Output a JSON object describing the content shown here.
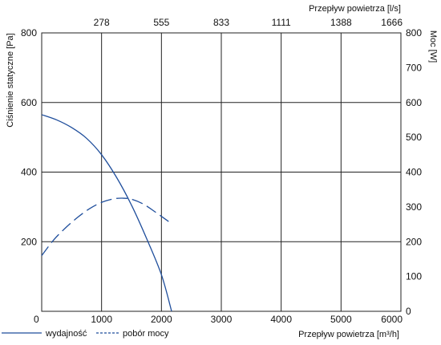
{
  "chart_data": {
    "type": "line",
    "x_label": "Przepływ powietrza [m³/h]",
    "x_top_label": "Przepływ powietrza [l/s]",
    "y_left_label": "Ciśnienie statyczne [Pa]",
    "y_right_label": "Moc [W]",
    "x_range": [
      0,
      6000
    ],
    "y_left_range": [
      0,
      800
    ],
    "y_right_range": [
      0,
      800
    ],
    "x_ticks": [
      "0",
      "1000",
      "2000",
      "3000",
      "4000",
      "5000",
      "6000"
    ],
    "x_top_ticks": [
      "278",
      "555",
      "833",
      "1111",
      "1388",
      "1666"
    ],
    "y_left_ticks": [
      "200",
      "400",
      "600",
      "800"
    ],
    "y_right_ticks": [
      "0",
      "100",
      "200",
      "300",
      "400",
      "500",
      "600",
      "700",
      "800"
    ],
    "grid": true,
    "series": [
      {
        "name": "wydajność",
        "axis": "left",
        "style": "solid",
        "color": "#1f4e9c",
        "points": [
          [
            0,
            565
          ],
          [
            250,
            550
          ],
          [
            500,
            528
          ],
          [
            750,
            497
          ],
          [
            1000,
            450
          ],
          [
            1250,
            385
          ],
          [
            1500,
            305
          ],
          [
            1750,
            210
          ],
          [
            2000,
            105
          ],
          [
            2170,
            0
          ]
        ]
      },
      {
        "name": "pobór mocy",
        "axis": "right",
        "style": "dashed",
        "color": "#1f4e9c",
        "points": [
          [
            0,
            160
          ],
          [
            200,
            205
          ],
          [
            400,
            240
          ],
          [
            600,
            270
          ],
          [
            800,
            295
          ],
          [
            1000,
            313
          ],
          [
            1200,
            323
          ],
          [
            1350,
            325
          ],
          [
            1500,
            322
          ],
          [
            1700,
            308
          ],
          [
            1900,
            285
          ],
          [
            2120,
            258
          ]
        ]
      }
    ]
  },
  "legend": {
    "solid_label": "wydajność",
    "dashed_label": "pobór mocy"
  }
}
